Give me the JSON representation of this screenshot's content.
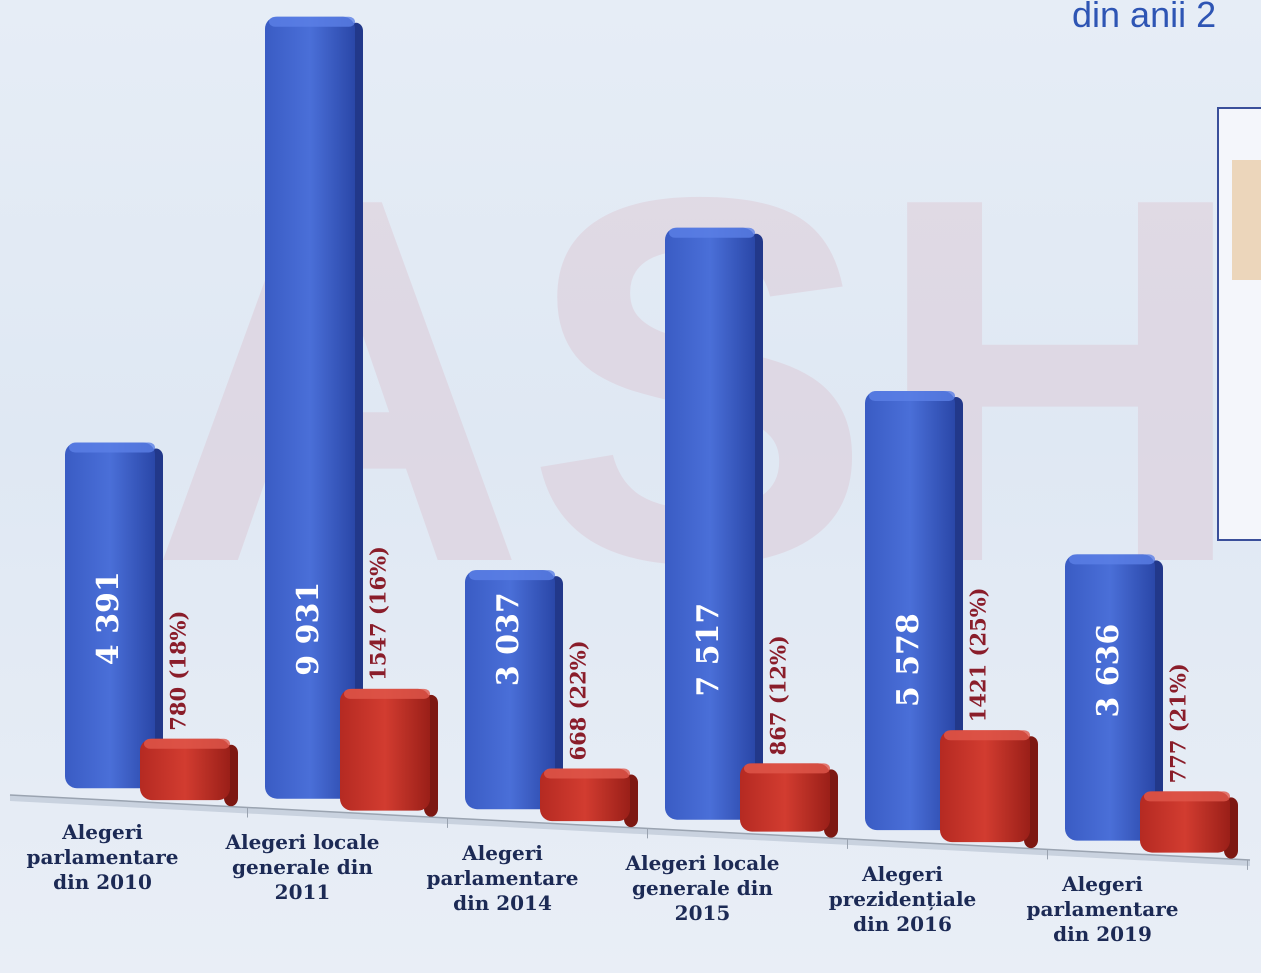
{
  "chart_data": {
    "type": "bar",
    "title": "din anii 2",
    "categories": [
      "Alegeri parlamentare din 2010",
      "Alegeri locale generale din 2011",
      "Alegeri parlamentare din 2014",
      "Alegeri locale generale din 2015",
      "Alegeri prezidențiale din 2016",
      "Alegeri parlamentare din 2019"
    ],
    "series": [
      {
        "color": "#3f62cc",
        "values": [
          4391,
          9931,
          3037,
          7517,
          5578,
          3636
        ],
        "value_labels": [
          "4 391",
          "9 931",
          "3 037",
          "7 517",
          "5 578",
          "3 636"
        ],
        "label_color": "#ffffff"
      },
      {
        "color": "#c0332a",
        "values": [
          780,
          1547,
          668,
          867,
          1421,
          777
        ],
        "value_labels": [
          "780 (18%)",
          "1547 (16%)",
          "668 (22%)",
          "867 (12%)",
          "1421 (25%)",
          "777 (21%)"
        ],
        "label_color": "#8a1d2a"
      }
    ]
  }
}
